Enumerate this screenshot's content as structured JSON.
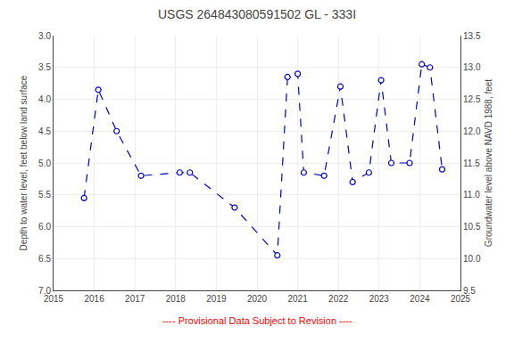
{
  "chart_data": {
    "type": "line",
    "title": "USGS 264843080591502 GL - 333I",
    "ylabel": "Depth to water level, feet below land surface",
    "y2label": "Groundwater level above NAVD 1988, feet",
    "x": [
      2015.75,
      2016.1,
      2016.55,
      2017.15,
      2018.1,
      2018.35,
      2019.45,
      2020.5,
      2020.75,
      2021.0,
      2021.15,
      2021.65,
      2022.05,
      2022.35,
      2022.75,
      2023.05,
      2023.3,
      2023.75,
      2024.05,
      2024.25,
      2024.55
    ],
    "values": [
      5.55,
      3.85,
      4.5,
      5.2,
      5.15,
      5.15,
      5.7,
      6.45,
      3.65,
      3.6,
      5.15,
      5.2,
      3.8,
      5.3,
      5.15,
      3.7,
      5.0,
      5.0,
      3.45,
      3.5,
      5.1
    ],
    "color": "#0000CC",
    "marker": "circle",
    "line_style": "dashed",
    "xlim": [
      2015,
      2025
    ],
    "xticks": [
      2015,
      2016,
      2017,
      2018,
      2019,
      2020,
      2021,
      2022,
      2023,
      2024,
      2025
    ],
    "ylim": [
      7.0,
      3.0
    ],
    "yticks": [
      {
        "value": 3,
        "label": "3.0"
      },
      3.5,
      {
        "value": 4,
        "label": "4.0"
      },
      4.5,
      {
        "value": 5,
        "label": "5.0"
      },
      5.5,
      {
        "value": 6,
        "label": "6.0"
      },
      6.5,
      {
        "value": 7,
        "label": "7.0"
      }
    ],
    "y2lim": [
      9.5,
      13.5
    ],
    "y2ticks": [
      9.5,
      {
        "value": 10,
        "label": "10.0"
      },
      10.5,
      {
        "value": 11,
        "label": "11.0"
      },
      11.5,
      {
        "value": 12,
        "label": "12.0"
      },
      12.5,
      {
        "value": 13,
        "label": "13.0"
      },
      13.5
    ],
    "grid": true,
    "annotations": [
      {
        "text": "---- Provisional Data Subject to Revision ----",
        "color": "red"
      }
    ]
  }
}
